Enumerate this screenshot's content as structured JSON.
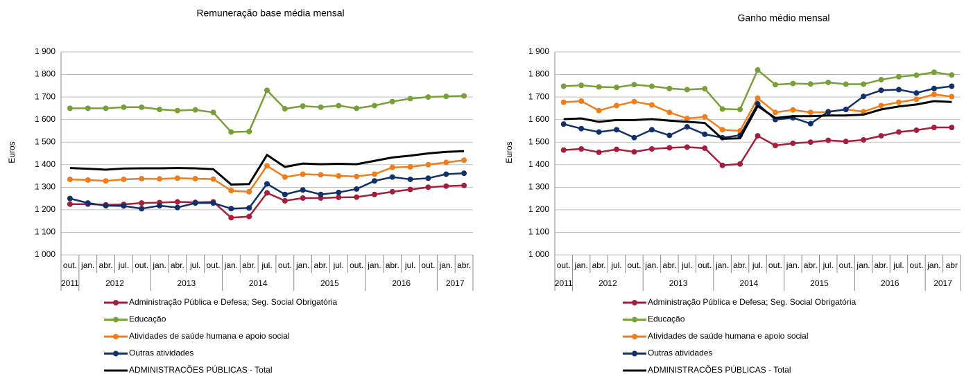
{
  "chart_data": [
    {
      "type": "line",
      "title": "Remuneração  base média mensal",
      "y_label": "Euros",
      "categories": [
        "out.",
        "jan.",
        "abr.",
        "jul.",
        "out.",
        "jan.",
        "abr.",
        "jul.",
        "out.",
        "jan.",
        "abr.",
        "jul.",
        "out.",
        "jan.",
        "abr.",
        "jul.",
        "out.",
        "jan.",
        "abr.",
        "jul.",
        "out.",
        "jan.",
        "abr."
      ],
      "years": [
        "2011",
        "2012",
        "2013",
        "2014",
        "2015",
        "2016",
        "2017"
      ],
      "ylim": [
        1000,
        1900
      ],
      "yticks": [
        {
          "value": 1000,
          "label": "1 000"
        },
        {
          "value": 1100,
          "label": "1 100"
        },
        {
          "value": 1200,
          "label": "1 200"
        },
        {
          "value": 1300,
          "label": "1 300"
        },
        {
          "value": 1400,
          "label": "1 400"
        },
        {
          "value": 1500,
          "label": "1 500"
        },
        {
          "value": 1600,
          "label": "1 600"
        },
        {
          "value": 1700,
          "label": "1 700"
        },
        {
          "value": 1800,
          "label": "1 800"
        },
        {
          "value": 1900,
          "label": "1 900"
        }
      ],
      "grid": true,
      "series": [
        {
          "name": "Administração Pública e Defesa; Seg. Social Obrigatória",
          "color": "#a51e3c",
          "marker": true,
          "values": [
            1225,
            1225,
            1222,
            1224,
            1230,
            1232,
            1235,
            1233,
            1235,
            1165,
            1170,
            1275,
            1240,
            1252,
            1252,
            1255,
            1256,
            1268,
            1280,
            1290,
            1300,
            1305,
            1308
          ]
        },
        {
          "name": "Educação",
          "color": "#77a037",
          "marker": true,
          "values": [
            1650,
            1650,
            1650,
            1655,
            1655,
            1645,
            1640,
            1643,
            1632,
            1545,
            1547,
            1730,
            1648,
            1660,
            1655,
            1662,
            1650,
            1662,
            1680,
            1693,
            1700,
            1703,
            1705
          ]
        },
        {
          "name": "Atividades de saúde humana e apoio social",
          "color": "#f07d1a",
          "marker": true,
          "values": [
            1335,
            1332,
            1328,
            1335,
            1338,
            1337,
            1340,
            1338,
            1336,
            1285,
            1280,
            1395,
            1345,
            1358,
            1355,
            1350,
            1348,
            1358,
            1388,
            1390,
            1400,
            1410,
            1420
          ]
        },
        {
          "name": "Outras atividades",
          "color": "#10306b",
          "marker": true,
          "values": [
            1250,
            1230,
            1218,
            1217,
            1205,
            1218,
            1210,
            1230,
            1230,
            1205,
            1208,
            1315,
            1268,
            1288,
            1268,
            1277,
            1292,
            1328,
            1345,
            1335,
            1340,
            1358,
            1362
          ]
        },
        {
          "name": "ADMINISTRACÕES PÚBLICAS - Total",
          "color": "#000000",
          "marker": false,
          "values": [
            1385,
            1382,
            1378,
            1383,
            1384,
            1384,
            1385,
            1384,
            1380,
            1312,
            1314,
            1443,
            1390,
            1405,
            1402,
            1404,
            1402,
            1417,
            1432,
            1440,
            1450,
            1457,
            1460
          ]
        }
      ]
    },
    {
      "type": "line",
      "title": "Ganho médio mensal",
      "y_label": "Euros",
      "categories": [
        "out.",
        "jan.",
        "abr.",
        "jul.",
        "out.",
        "jan.",
        "abr.",
        "jul.",
        "out.",
        "jan.",
        "abr.",
        "jul.",
        "out.",
        "jan.",
        "abr.",
        "jul.",
        "out.",
        "jan.",
        "abr.",
        "jul.",
        "out.",
        "jan.",
        "abr"
      ],
      "years": [
        "2011",
        "2012",
        "2013",
        "2014",
        "2015",
        "2016",
        "2017"
      ],
      "ylim": [
        1000,
        1900
      ],
      "yticks": [
        {
          "value": 1000,
          "label": "1 000"
        },
        {
          "value": 1100,
          "label": "1 100"
        },
        {
          "value": 1200,
          "label": "1 200"
        },
        {
          "value": 1300,
          "label": "1 300"
        },
        {
          "value": 1400,
          "label": "1 400"
        },
        {
          "value": 1500,
          "label": "1 500"
        },
        {
          "value": 1600,
          "label": "1 600"
        },
        {
          "value": 1700,
          "label": "1 700"
        },
        {
          "value": 1800,
          "label": "1 800"
        },
        {
          "value": 1900,
          "label": "1 900"
        }
      ],
      "grid": true,
      "series": [
        {
          "name": "Administração Pública e Defesa; Seg. Social Obrigatória",
          "color": "#a51e3c",
          "marker": true,
          "values": [
            1465,
            1470,
            1455,
            1468,
            1457,
            1470,
            1475,
            1478,
            1473,
            1397,
            1403,
            1528,
            1485,
            1495,
            1500,
            1508,
            1503,
            1510,
            1528,
            1545,
            1553,
            1565,
            1565
          ]
        },
        {
          "name": "Educação",
          "color": "#77a037",
          "marker": true,
          "values": [
            1748,
            1752,
            1745,
            1743,
            1755,
            1748,
            1738,
            1733,
            1737,
            1647,
            1645,
            1820,
            1755,
            1760,
            1758,
            1765,
            1757,
            1757,
            1777,
            1790,
            1797,
            1810,
            1798
          ]
        },
        {
          "name": "Atividades de saúde humana e apoio social",
          "color": "#f07d1a",
          "marker": true,
          "values": [
            1677,
            1682,
            1640,
            1662,
            1680,
            1665,
            1632,
            1605,
            1612,
            1555,
            1550,
            1695,
            1632,
            1643,
            1632,
            1633,
            1645,
            1635,
            1662,
            1677,
            1690,
            1712,
            1702
          ]
        },
        {
          "name": "Outras atividades",
          "color": "#10306b",
          "marker": true,
          "values": [
            1580,
            1560,
            1545,
            1555,
            1520,
            1555,
            1530,
            1568,
            1535,
            1520,
            1530,
            1670,
            1600,
            1608,
            1582,
            1635,
            1645,
            1703,
            1730,
            1733,
            1718,
            1738,
            1748
          ]
        },
        {
          "name": "ADMINISTRACÕES PÚBLICAS - Total",
          "color": "#000000",
          "marker": false,
          "values": [
            1602,
            1605,
            1590,
            1598,
            1598,
            1602,
            1595,
            1590,
            1585,
            1515,
            1517,
            1660,
            1607,
            1615,
            1615,
            1618,
            1618,
            1622,
            1645,
            1658,
            1667,
            1682,
            1678
          ]
        }
      ]
    }
  ]
}
